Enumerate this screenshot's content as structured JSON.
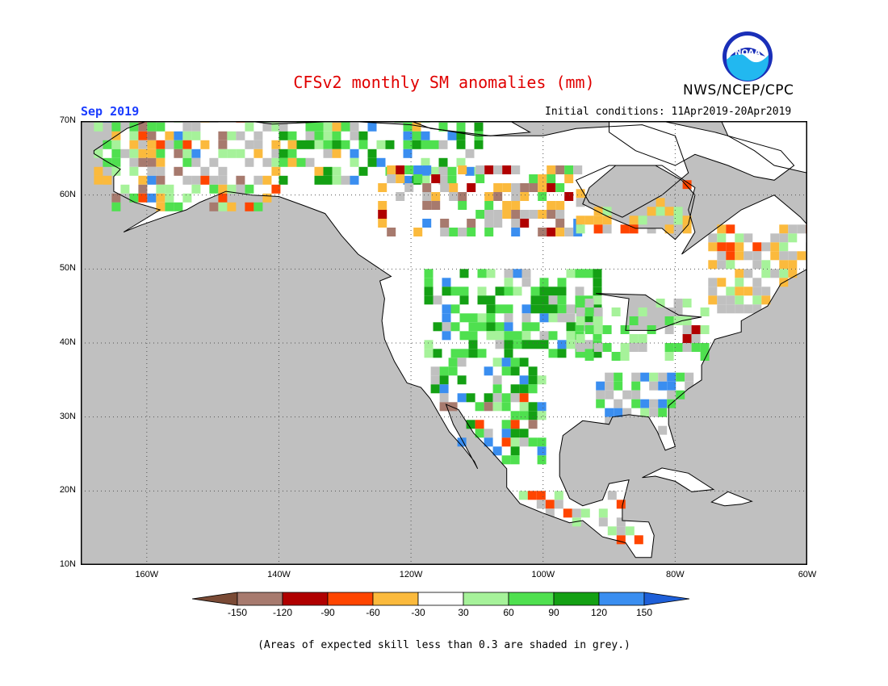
{
  "title": "CFSv2 monthly SM anomalies (mm)",
  "org": "NWS/NCEP/CPC",
  "logo_text": "NOAA",
  "month": "Sep 2019",
  "initial_conditions": "Initial conditions: 11Apr2019-20Apr2019",
  "note": "(Areas of expected skill less than 0.3 are shaded in grey.)",
  "lat_labels": [
    "70N",
    "60N",
    "50N",
    "40N",
    "30N",
    "20N",
    "10N"
  ],
  "lon_labels": [
    "160W",
    "140W",
    "120W",
    "100W",
    "80W",
    "60W"
  ],
  "colorbar": {
    "labels": [
      "-150",
      "-120",
      "-90",
      "-60",
      "-30",
      "30",
      "60",
      "90",
      "120",
      "150"
    ],
    "colors": [
      "#7a4a35",
      "#a77a6e",
      "#b00000",
      "#ff4500",
      "#fbba3d",
      "#ffffff",
      "#a6f29a",
      "#4fe04f",
      "#14a014",
      "#3a8ef0",
      "#1e5fd8"
    ]
  },
  "colors": {
    "grey_skill_mask": "#c0c0c0",
    "ocean": "#c0c0c0",
    "title": "#e00000",
    "month": "#1a3cff"
  },
  "map": {
    "lon_range": [
      -170,
      -60
    ],
    "lat_range": [
      10,
      70
    ]
  }
}
